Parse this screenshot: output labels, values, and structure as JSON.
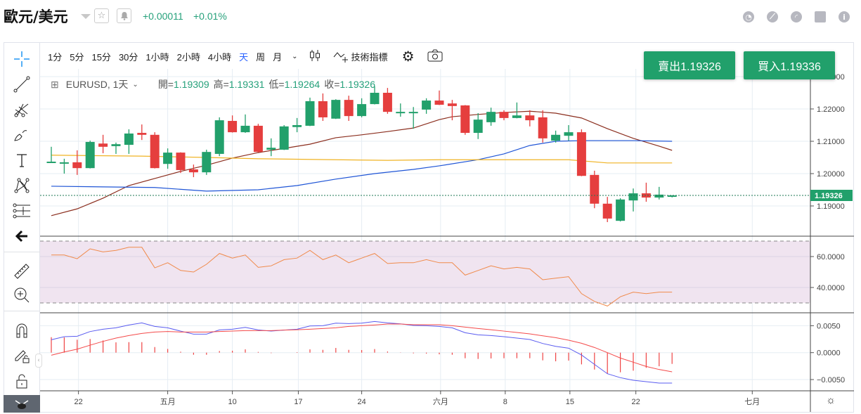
{
  "header": {
    "title": "歐元/美元",
    "change_abs": "+0.00011",
    "change_pct": "+0.01%",
    "top_icons": [
      "pie-chart-icon",
      "compass-icon",
      "gauge-icon",
      "calendar-icon",
      "info-icon"
    ]
  },
  "toolbar": {
    "intervals": [
      "1分",
      "5分",
      "15分",
      "30分",
      "1小時",
      "2小時",
      "4小時",
      "天",
      "周",
      "月"
    ],
    "active_interval": "天",
    "indicators_label": "技術指標"
  },
  "legend": {
    "symbol": "EURUSD, 1天",
    "open_label": "開=",
    "open": "1.19309",
    "high_label": "高=",
    "high": "1.19331",
    "low_label": "低=",
    "low": "1.19264",
    "close_label": "收=",
    "close": "1.19326"
  },
  "trade": {
    "sell_label": "賣出1.19326",
    "buy_label": "買入1.19336"
  },
  "colors": {
    "up": "#22a06b",
    "down": "#e53e3e",
    "accent": "#2962ff",
    "brand": "#21a06b"
  },
  "chart_data": {
    "type": "candlestick",
    "symbol": "EURUSD",
    "price_axis_labels": [
      "1.23000",
      "1.22000",
      "1.21000",
      "1.20000",
      "1.19000"
    ],
    "price_ticks": [
      1.23,
      1.22,
      1.21,
      1.2,
      1.19
    ],
    "last_price_label": "1.19326",
    "last_price": 1.19326,
    "time_labels": [
      {
        "label": "22",
        "index": 2.1
      },
      {
        "label": "五月",
        "index": 9
      },
      {
        "label": "10",
        "index": 14
      },
      {
        "label": "17",
        "index": 19.1
      },
      {
        "label": "24",
        "index": 24
      },
      {
        "label": "六月",
        "index": 30.1
      },
      {
        "label": "8",
        "index": 35.1
      },
      {
        "label": "15",
        "index": 40.1
      },
      {
        "label": "22",
        "index": 45.2
      },
      {
        "label": "七月",
        "index": 54.2
      }
    ],
    "ohlc": [
      [
        1.2036,
        1.2083,
        1.2033,
        1.2037
      ],
      [
        1.2034,
        1.2046,
        1.2,
        1.2035
      ],
      [
        1.2035,
        1.2072,
        1.1996,
        1.2017
      ],
      [
        1.2017,
        1.2102,
        1.2016,
        1.2098
      ],
      [
        1.2093,
        1.212,
        1.2063,
        1.2083
      ],
      [
        1.2085,
        1.2096,
        1.2061,
        1.2091
      ],
      [
        1.2089,
        1.2137,
        1.2061,
        1.2124
      ],
      [
        1.2126,
        1.2152,
        1.2104,
        1.212
      ],
      [
        1.212,
        1.2128,
        1.2016,
        1.2017
      ],
      [
        1.203,
        1.2078,
        1.2015,
        1.2065
      ],
      [
        1.2065,
        1.2066,
        1.2002,
        1.2011
      ],
      [
        1.2013,
        1.2028,
        1.1989,
        1.2004
      ],
      [
        1.2004,
        1.2074,
        1.1996,
        1.2067
      ],
      [
        1.2061,
        1.2174,
        1.2054,
        1.2165
      ],
      [
        1.2163,
        1.218,
        1.2127,
        1.2128
      ],
      [
        1.2128,
        1.2183,
        1.2126,
        1.2148
      ],
      [
        1.2148,
        1.2154,
        1.2066,
        1.2067
      ],
      [
        1.2074,
        1.2109,
        1.2054,
        1.208
      ],
      [
        1.2074,
        1.215,
        1.2073,
        1.2146
      ],
      [
        1.2144,
        1.2172,
        1.2128,
        1.215
      ],
      [
        1.2148,
        1.2235,
        1.2147,
        1.2224
      ],
      [
        1.2224,
        1.2248,
        1.2163,
        1.2174
      ],
      [
        1.217,
        1.223,
        1.2169,
        1.2228
      ],
      [
        1.2228,
        1.2241,
        1.2163,
        1.2178
      ],
      [
        1.2178,
        1.2233,
        1.2174,
        1.2215
      ],
      [
        1.2215,
        1.227,
        1.2214,
        1.225
      ],
      [
        1.225,
        1.2265,
        1.2185,
        1.2191
      ],
      [
        1.219,
        1.2217,
        1.2176,
        1.2191
      ],
      [
        1.219,
        1.2206,
        1.2139,
        1.2191
      ],
      [
        1.2198,
        1.2233,
        1.2185,
        1.2226
      ],
      [
        1.2226,
        1.2257,
        1.2212,
        1.2213
      ],
      [
        1.2217,
        1.2228,
        1.2165,
        1.2209
      ],
      [
        1.2211,
        1.2212,
        1.212,
        1.2126
      ],
      [
        1.2126,
        1.2187,
        1.2107,
        1.2167
      ],
      [
        1.2159,
        1.2204,
        1.2148,
        1.2191
      ],
      [
        1.2191,
        1.2196,
        1.2165,
        1.2172
      ],
      [
        1.2172,
        1.222,
        1.2171,
        1.218
      ],
      [
        1.218,
        1.2196,
        1.2146,
        1.2165
      ],
      [
        1.2174,
        1.2196,
        1.2096,
        1.2109
      ],
      [
        1.2102,
        1.2133,
        1.2096,
        1.212
      ],
      [
        1.2117,
        1.215,
        1.2102,
        1.2128
      ],
      [
        1.2128,
        1.2137,
        1.1992,
        1.1993
      ],
      [
        1.1996,
        1.2009,
        1.1893,
        1.1907
      ],
      [
        1.1907,
        1.1928,
        1.185,
        1.1861
      ],
      [
        1.1854,
        1.1924,
        1.1852,
        1.192
      ],
      [
        1.1917,
        1.1954,
        1.1883,
        1.1939
      ],
      [
        1.1939,
        1.1972,
        1.1913,
        1.1926
      ],
      [
        1.1926,
        1.1959,
        1.192,
        1.1935
      ],
      [
        1.19309,
        1.19331,
        1.19264,
        1.19326
      ]
    ],
    "moving_averages": [
      {
        "name": "MA-brown",
        "color": "#8b2e1e",
        "points": [
          [
            0,
            1.187
          ],
          [
            2,
            1.1891
          ],
          [
            4,
            1.1924
          ],
          [
            6,
            1.1963
          ],
          [
            8,
            1.1985
          ],
          [
            10,
            1.2007
          ],
          [
            12,
            1.2026
          ],
          [
            14,
            1.2048
          ],
          [
            16,
            1.2065
          ],
          [
            18,
            1.2078
          ],
          [
            20,
            1.2091
          ],
          [
            22,
            1.2111
          ],
          [
            24,
            1.212
          ],
          [
            26,
            1.213
          ],
          [
            28,
            1.2141
          ],
          [
            30,
            1.2167
          ],
          [
            31,
            1.2176
          ],
          [
            33,
            1.2183
          ],
          [
            35,
            1.2189
          ],
          [
            37,
            1.2193
          ],
          [
            39,
            1.2187
          ],
          [
            41,
            1.2172
          ],
          [
            43,
            1.2139
          ],
          [
            45,
            1.2109
          ],
          [
            47,
            1.2085
          ],
          [
            48,
            1.2072
          ]
        ]
      },
      {
        "name": "MA-blue",
        "color": "#1f55d6",
        "points": [
          [
            0,
            1.1961
          ],
          [
            4,
            1.1959
          ],
          [
            8,
            1.1957
          ],
          [
            12,
            1.1946
          ],
          [
            16,
            1.195
          ],
          [
            19,
            1.1963
          ],
          [
            22,
            1.1983
          ],
          [
            25,
            1.2
          ],
          [
            28,
            1.2013
          ],
          [
            30,
            1.2024
          ],
          [
            33,
            1.2043
          ],
          [
            35,
            1.2061
          ],
          [
            37,
            1.2087
          ],
          [
            39,
            1.21
          ],
          [
            41,
            1.2102
          ],
          [
            45,
            1.2102
          ],
          [
            48,
            1.21
          ]
        ]
      },
      {
        "name": "MA-yellow",
        "color": "#f0b323",
        "points": [
          [
            0,
            1.2057
          ],
          [
            7,
            1.2054
          ],
          [
            12,
            1.205
          ],
          [
            16,
            1.2046
          ],
          [
            22,
            1.2043
          ],
          [
            26,
            1.2041
          ],
          [
            30,
            1.2043
          ],
          [
            40,
            1.2043
          ],
          [
            43,
            1.2033
          ],
          [
            48,
            1.2033
          ]
        ]
      }
    ],
    "rsi": {
      "axis_labels": [
        "60.0000",
        "40.0000"
      ],
      "ticks": [
        60,
        40
      ],
      "band": [
        30,
        70
      ],
      "values": [
        61,
        61,
        58.6,
        65,
        63,
        64,
        66,
        66,
        52.7,
        56,
        51,
        50,
        55,
        62,
        59,
        61,
        53,
        54,
        58,
        59,
        64,
        58,
        61,
        56,
        59,
        62,
        55.5,
        56,
        56,
        58,
        56,
        56,
        48,
        51,
        54,
        52,
        53,
        52,
        45,
        46,
        47,
        36,
        31,
        28,
        34,
        37,
        36,
        37,
        37
      ]
    },
    "macd": {
      "axis_labels": [
        "0.0050",
        "0.0000",
        "−0.0050"
      ],
      "ticks": [
        0.005,
        0,
        -0.005
      ],
      "macd": [
        0.00239,
        0.00296,
        0.00305,
        0.00392,
        0.00435,
        0.00461,
        0.00513,
        0.00552,
        0.00487,
        0.00461,
        0.004,
        0.00344,
        0.00344,
        0.00422,
        0.00435,
        0.0047,
        0.00422,
        0.004,
        0.00418,
        0.00435,
        0.00496,
        0.005,
        0.00548,
        0.00539,
        0.00548,
        0.00579,
        0.00552,
        0.00535,
        0.00505,
        0.005,
        0.00487,
        0.00461,
        0.0037,
        0.00331,
        0.00318,
        0.00296,
        0.0027,
        0.00244,
        0.0017,
        0.00117,
        0.00083,
        -0.00044,
        -0.00218,
        -0.00392,
        -0.00465,
        -0.00513,
        -0.00539,
        -0.00566,
        -0.00566
      ],
      "signal": [
        -0.00048,
        0.00013,
        0.00065,
        0.00139,
        0.00209,
        0.0027,
        0.00318,
        0.00357,
        0.00383,
        0.00392,
        0.00383,
        0.00383,
        0.00383,
        0.00392,
        0.004,
        0.00409,
        0.00409,
        0.00409,
        0.00418,
        0.00426,
        0.00435,
        0.00448,
        0.00461,
        0.00487,
        0.005,
        0.00513,
        0.00531,
        0.00531,
        0.00518,
        0.00518,
        0.00518,
        0.005,
        0.00474,
        0.00448,
        0.00426,
        0.004,
        0.00374,
        0.00348,
        0.00313,
        0.00278,
        0.00231,
        0.00174,
        0.00096,
        0.0,
        -0.001,
        -0.00178,
        -0.00257,
        -0.00313,
        -0.00357
      ]
    }
  }
}
